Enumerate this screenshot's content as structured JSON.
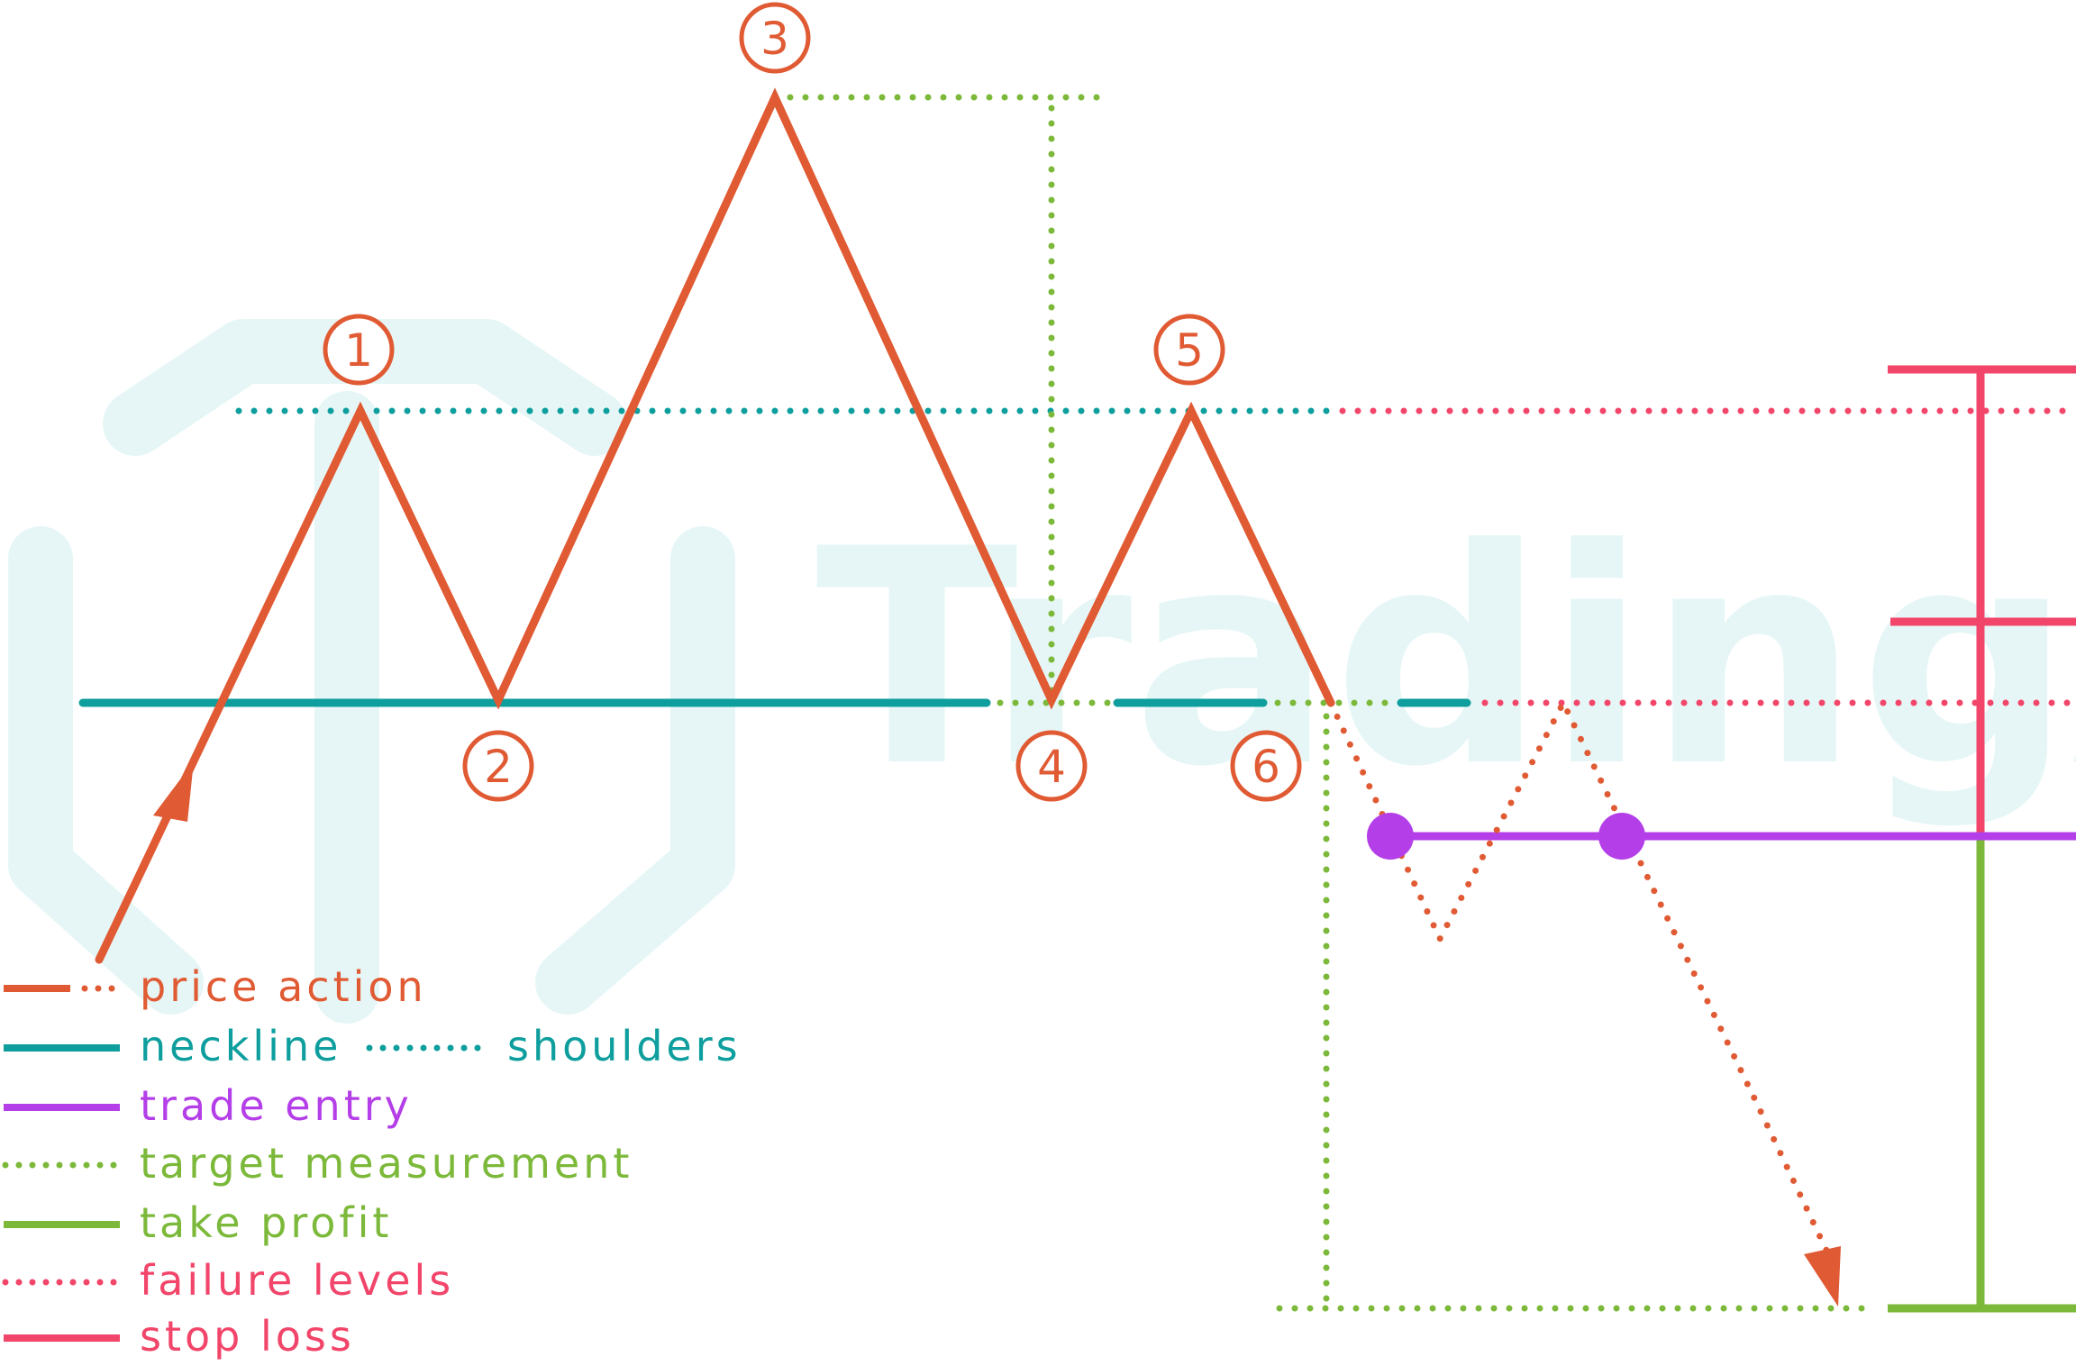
{
  "watermark": {
    "text": "TradingAxe"
  },
  "colors": {
    "price": "#E05A33",
    "neckline": "#0E9E9E",
    "entry": "#B43FE8",
    "target": "#7CB93A",
    "takeprofit": "#7CB93A",
    "failure": "#F2456A",
    "stoploss": "#F2456A",
    "watermark": "#E6F6F6"
  },
  "points": [
    {
      "label": "1"
    },
    {
      "label": "2"
    },
    {
      "label": "3"
    },
    {
      "label": "4"
    },
    {
      "label": "5"
    },
    {
      "label": "6"
    }
  ],
  "legend": {
    "price_action": "price action",
    "neckline": "neckline",
    "shoulders": "shoulders",
    "trade_entry": "trade entry",
    "target_measurement": "target measurement",
    "take_profit": "take profit",
    "failure_levels": "failure levels",
    "stop_loss": "stop loss"
  }
}
